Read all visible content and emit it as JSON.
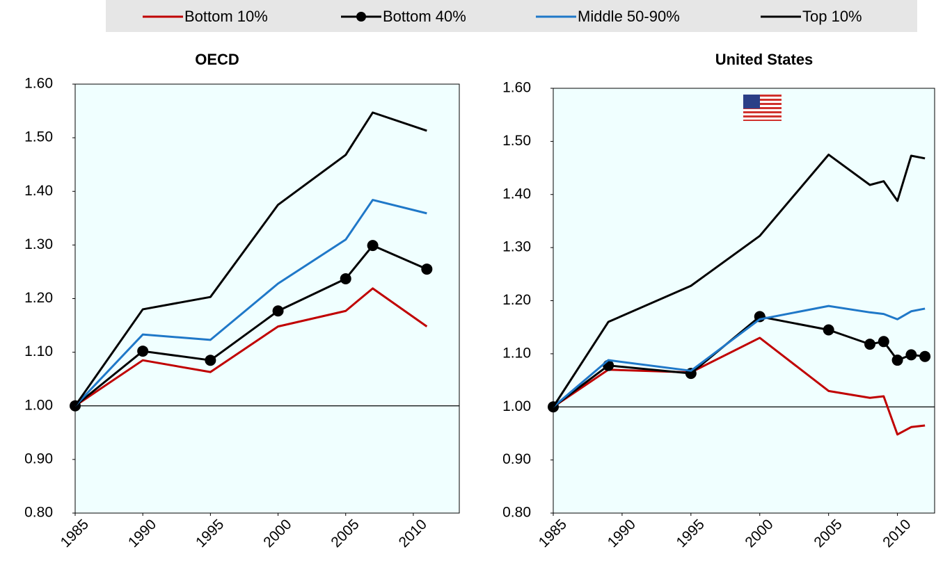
{
  "chart_data": [
    {
      "type": "line",
      "title": "OECD",
      "x": [
        1985,
        1990,
        1995,
        2000,
        2005,
        2007,
        2011
      ],
      "xlim": [
        1985,
        2013.4
      ],
      "xticks": [
        1985,
        1990,
        1995,
        2000,
        2005,
        2010
      ],
      "ylim": [
        0.8,
        1.6
      ],
      "yticks": [
        {
          "value": 0.8,
          "label": "0.80"
        },
        {
          "value": 0.9,
          "label": "0.90"
        },
        {
          "value": 1.0,
          "label": "1.00"
        },
        {
          "value": 1.1,
          "label": "1.10"
        },
        {
          "value": 1.2,
          "label": "1.20"
        },
        {
          "value": 1.3,
          "label": "1.30"
        },
        {
          "value": 1.4,
          "label": "1.40"
        },
        {
          "value": 1.5,
          "label": "1.50"
        },
        {
          "value": 1.6,
          "label": "1.60"
        }
      ],
      "reference_line": 1.0,
      "grid": false,
      "series": [
        {
          "name": "Bottom 10%",
          "color": "#c00000",
          "marker": false,
          "values": [
            1.0,
            1.085,
            1.063,
            1.148,
            1.177,
            1.219,
            1.148
          ]
        },
        {
          "name": "Bottom 40%",
          "color": "#000000",
          "marker": true,
          "values": [
            1.0,
            1.102,
            1.085,
            1.177,
            1.237,
            1.299,
            1.255
          ]
        },
        {
          "name": "Middle 50-90%",
          "color": "#1f78c8",
          "marker": false,
          "values": [
            1.0,
            1.133,
            1.123,
            1.228,
            1.31,
            1.384,
            1.359
          ]
        },
        {
          "name": "Top 10%",
          "color": "#000000",
          "marker": false,
          "values": [
            1.0,
            1.18,
            1.203,
            1.375,
            1.468,
            1.547,
            1.513
          ]
        }
      ]
    },
    {
      "type": "line",
      "title": "United States",
      "x": [
        1985,
        1989,
        1995,
        2000,
        2005,
        2008,
        2009,
        2010,
        2011,
        2012
      ],
      "xlim": [
        1985,
        2012.7
      ],
      "xticks": [
        1985,
        1990,
        1995,
        2000,
        2005,
        2010
      ],
      "ylim": [
        0.8,
        1.6
      ],
      "yticks": [
        {
          "value": 0.8,
          "label": "0.80"
        },
        {
          "value": 0.9,
          "label": "0.90"
        },
        {
          "value": 1.0,
          "label": "1.00"
        },
        {
          "value": 1.1,
          "label": "1.10"
        },
        {
          "value": 1.2,
          "label": "1.20"
        },
        {
          "value": 1.3,
          "label": "1.30"
        },
        {
          "value": 1.4,
          "label": "1.40"
        },
        {
          "value": 1.5,
          "label": "1.50"
        },
        {
          "value": 1.6,
          "label": "1.60"
        }
      ],
      "reference_line": 1.0,
      "grid": false,
      "series": [
        {
          "name": "Bottom 10%",
          "color": "#c00000",
          "marker": false,
          "values": [
            1.0,
            1.07,
            1.065,
            1.13,
            1.03,
            1.017,
            1.02,
            0.948,
            0.962,
            0.965
          ]
        },
        {
          "name": "Bottom 40%",
          "color": "#000000",
          "marker": true,
          "values": [
            1.0,
            1.078,
            1.063,
            1.17,
            1.145,
            1.118,
            1.123,
            1.088,
            1.098,
            1.095
          ]
        },
        {
          "name": "Middle 50-90%",
          "color": "#1f78c8",
          "marker": false,
          "values": [
            1.0,
            1.088,
            1.068,
            1.165,
            1.19,
            1.178,
            1.175,
            1.165,
            1.18,
            1.185
          ]
        },
        {
          "name": "Top 10%",
          "color": "#000000",
          "marker": false,
          "values": [
            1.0,
            1.16,
            1.228,
            1.322,
            1.475,
            1.418,
            1.425,
            1.388,
            1.473,
            1.468
          ]
        }
      ]
    }
  ]
}
